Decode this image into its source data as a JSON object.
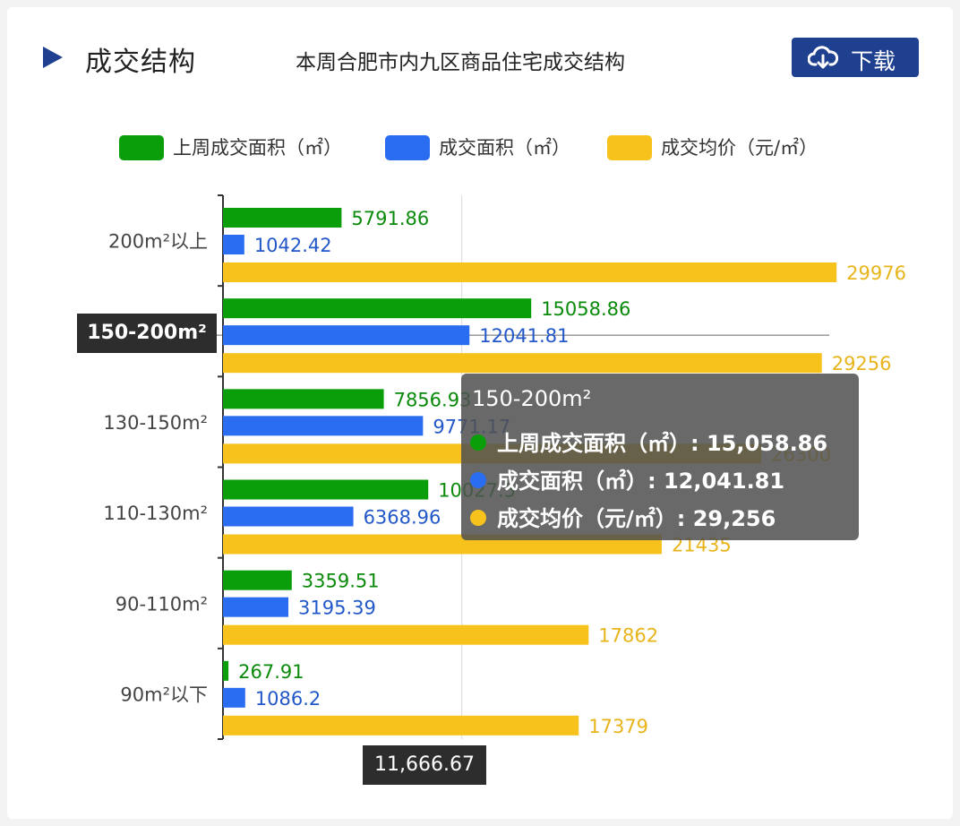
{
  "header": {
    "section_title": "成交结构",
    "chart_title": "本周合肥市内九区商品住宅成交结构",
    "download_label": "下载"
  },
  "legend": [
    {
      "name": "上周成交面积（㎡）",
      "color": "#0a9e0a"
    },
    {
      "name": "成交面积（㎡）",
      "color": "#2a6df0"
    },
    {
      "name": "成交均价（元/㎡）",
      "color": "#f7c21c"
    }
  ],
  "chart_data": {
    "type": "bar",
    "orientation": "horizontal",
    "title": "本周合肥市内九区商品住宅成交结构",
    "categories": [
      "200m²以上",
      "150-200m²",
      "130-150m²",
      "110-130m²",
      "90-110m²",
      "90m²以下"
    ],
    "series": [
      {
        "name": "上周成交面积（㎡）",
        "color": "#0a9e0a",
        "label_color": "#0a8a0a",
        "values": [
          5791.86,
          15058.86,
          7856.93,
          10027.5,
          3359.51,
          267.91
        ]
      },
      {
        "name": "成交面积（㎡）",
        "color": "#2a6df0",
        "label_color": "#2358c8",
        "values": [
          1042.42,
          12041.81,
          9771.17,
          6368.96,
          3195.39,
          1086.2
        ]
      },
      {
        "name": "成交均价（元/㎡）",
        "color": "#f7c21c",
        "label_color": "#e8b41a",
        "values": [
          29976,
          29256,
          26300,
          21435,
          17862,
          17379
        ]
      }
    ],
    "labels": [
      [
        "5791.86",
        "1042.42",
        "29976"
      ],
      [
        "15058.86",
        "12041.81",
        "29256"
      ],
      [
        "7856.93",
        "9771.17",
        "26300"
      ],
      [
        "10027.5",
        "6368.96",
        "21435"
      ],
      [
        "3359.51",
        "3195.39",
        "17862"
      ],
      [
        "267.91",
        "1086.2",
        "17379"
      ]
    ],
    "xlim": [
      0,
      35000
    ],
    "grid_x_values": [
      11666.67
    ],
    "axis_pointer_value": "11,666.67",
    "highlight_category": "150-200m²"
  },
  "tooltip": {
    "title": "150-200m²",
    "rows": [
      {
        "text": "上周成交面积（㎡）: 15,058.86",
        "color": "#0a9e0a"
      },
      {
        "text": "成交面积（㎡）: 12,041.81",
        "color": "#2a6df0"
      },
      {
        "text": "成交均价（元/㎡）: 29,256",
        "color": "#f7c21c"
      }
    ]
  }
}
